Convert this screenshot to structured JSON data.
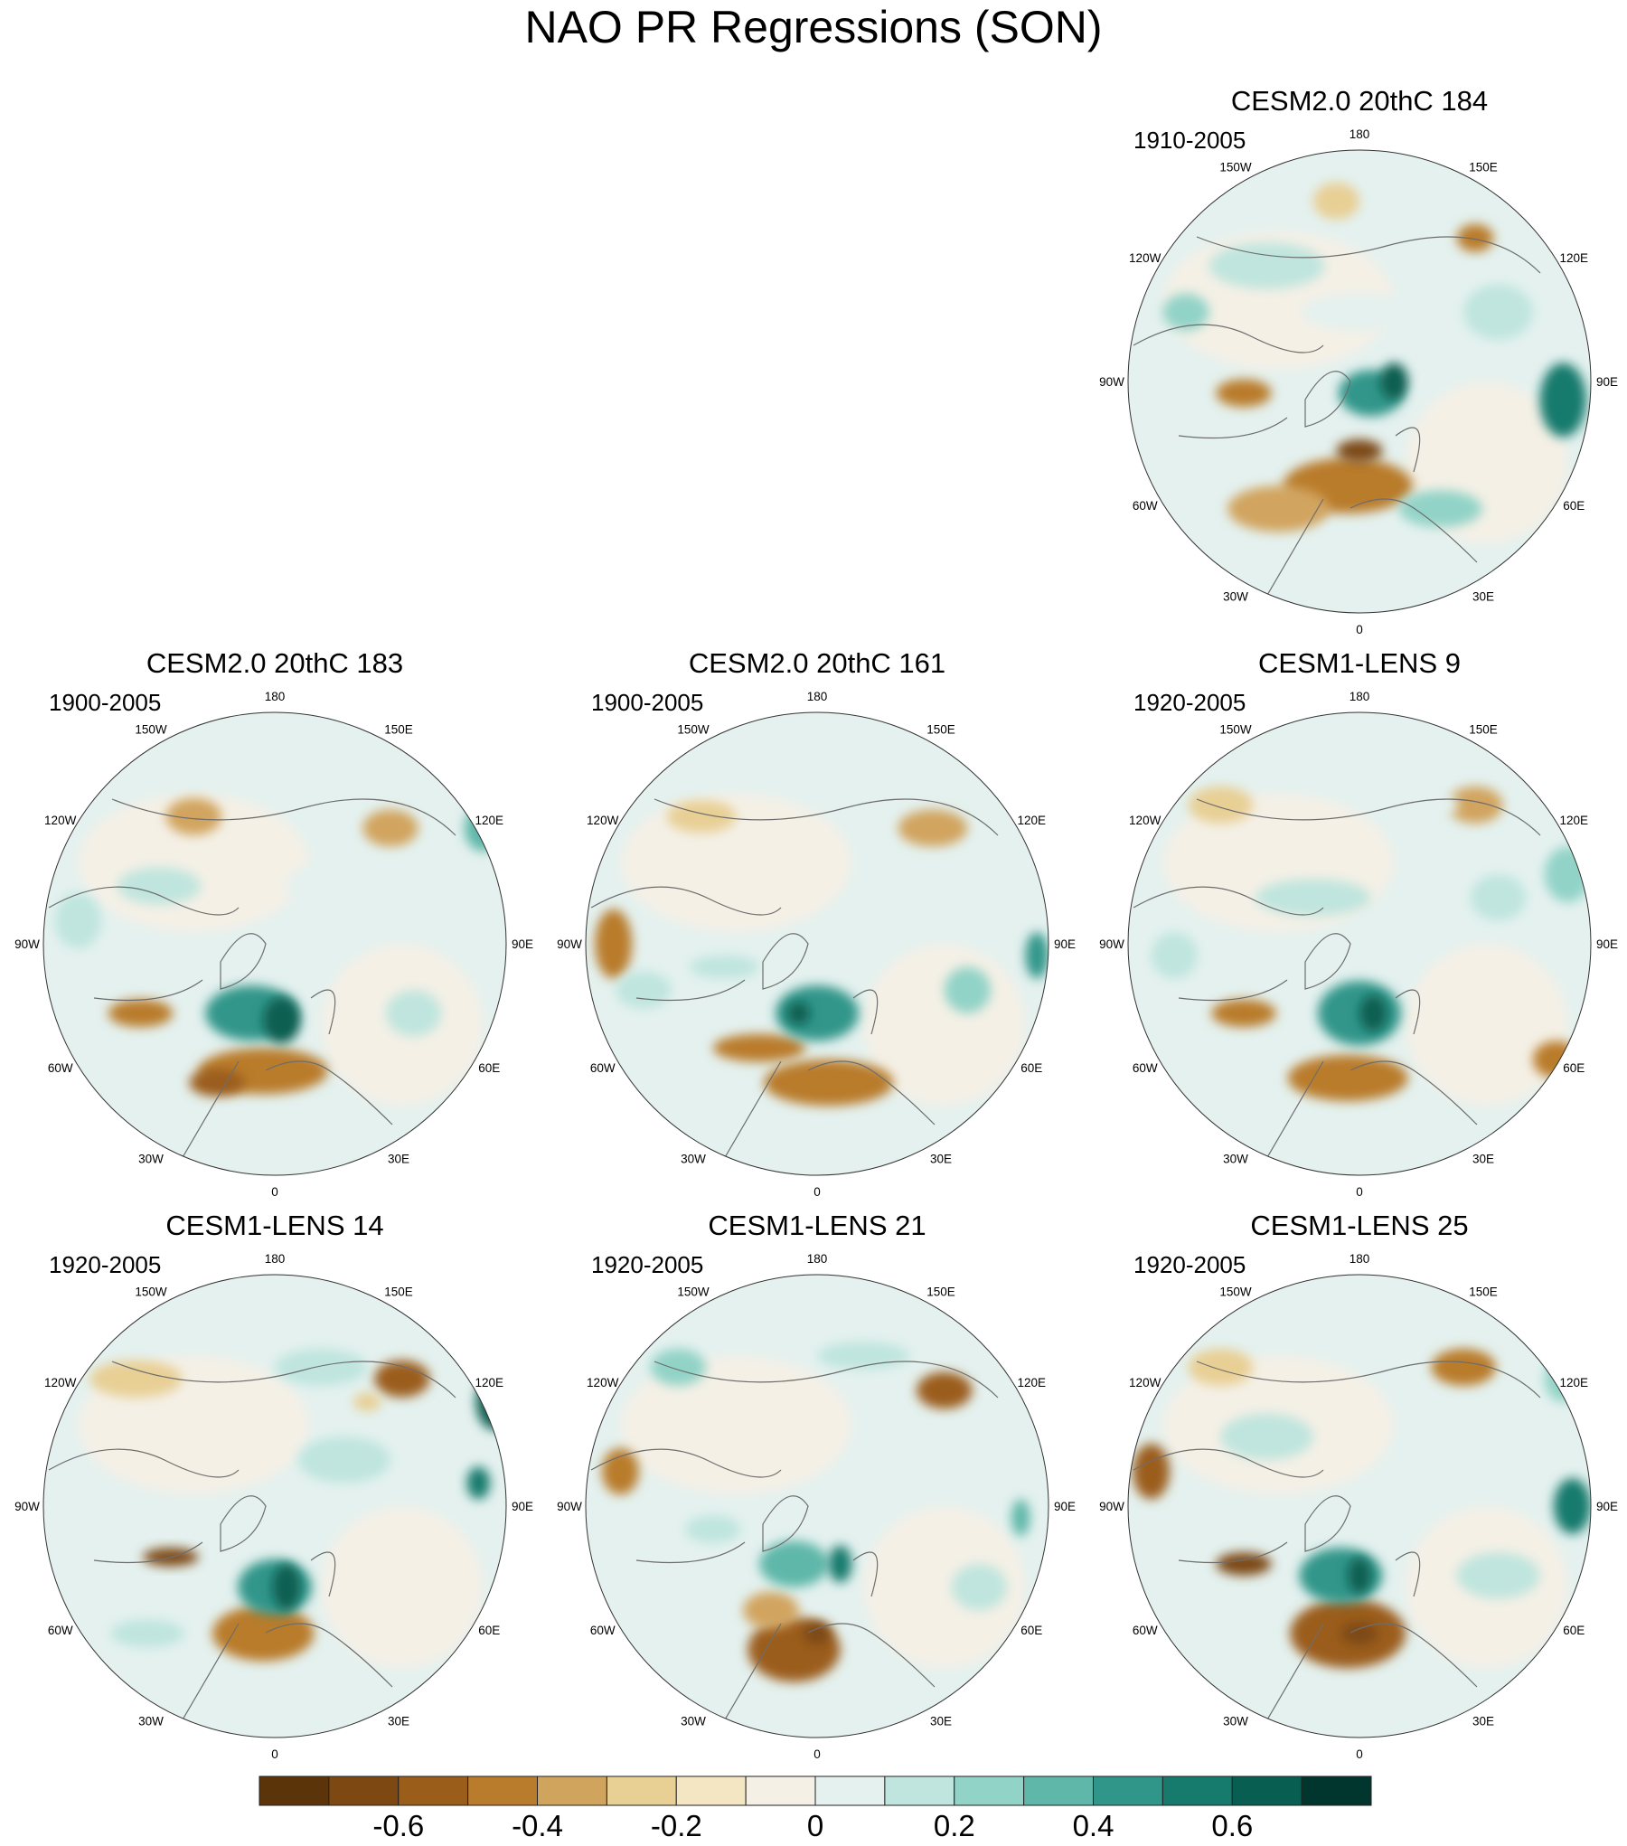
{
  "chart_data": [
    {
      "type": "heatmap",
      "title": "CESM2.0 20thC 184",
      "period": "1910-2005",
      "projection": "north polar stereographic"
    },
    {
      "type": "heatmap",
      "title": "CESM2.0 20thC 183",
      "period": "1900-2005",
      "projection": "north polar stereographic"
    },
    {
      "type": "heatmap",
      "title": "CESM2.0 20thC 161",
      "period": "1900-2005",
      "projection": "north polar stereographic"
    },
    {
      "type": "heatmap",
      "title": "CESM1-LENS 9",
      "period": "1920-2005",
      "projection": "north polar stereographic"
    },
    {
      "type": "heatmap",
      "title": "CESM1-LENS 14",
      "period": "1920-2005",
      "projection": "north polar stereographic"
    },
    {
      "type": "heatmap",
      "title": "CESM1-LENS 21",
      "period": "1920-2005",
      "projection": "north polar stereographic"
    },
    {
      "type": "heatmap",
      "title": "CESM1-LENS 25",
      "period": "1920-2005",
      "projection": "north polar stereographic"
    }
  ],
  "figure": {
    "title": "NAO PR Regressions (SON)",
    "longitude_labels": [
      "180",
      "150E",
      "120E",
      "90E",
      "60E",
      "30E",
      "0",
      "30W",
      "60W",
      "90W",
      "120W",
      "150W"
    ]
  },
  "colorbar": {
    "colors": [
      "#5c3409",
      "#7d4812",
      "#9b5d1a",
      "#b97b2c",
      "#d1a45e",
      "#e8cf94",
      "#f5e6c3",
      "#f4f0e6",
      "#e4f1ef",
      "#bfe5de",
      "#92d3c7",
      "#5fb7a9",
      "#31968a",
      "#167a6d",
      "#075e51",
      "#01362e"
    ],
    "tick_labels": [
      "-0.6",
      "-0.4",
      "-0.2",
      "0",
      "0.2",
      "0.4",
      "0.6"
    ]
  }
}
